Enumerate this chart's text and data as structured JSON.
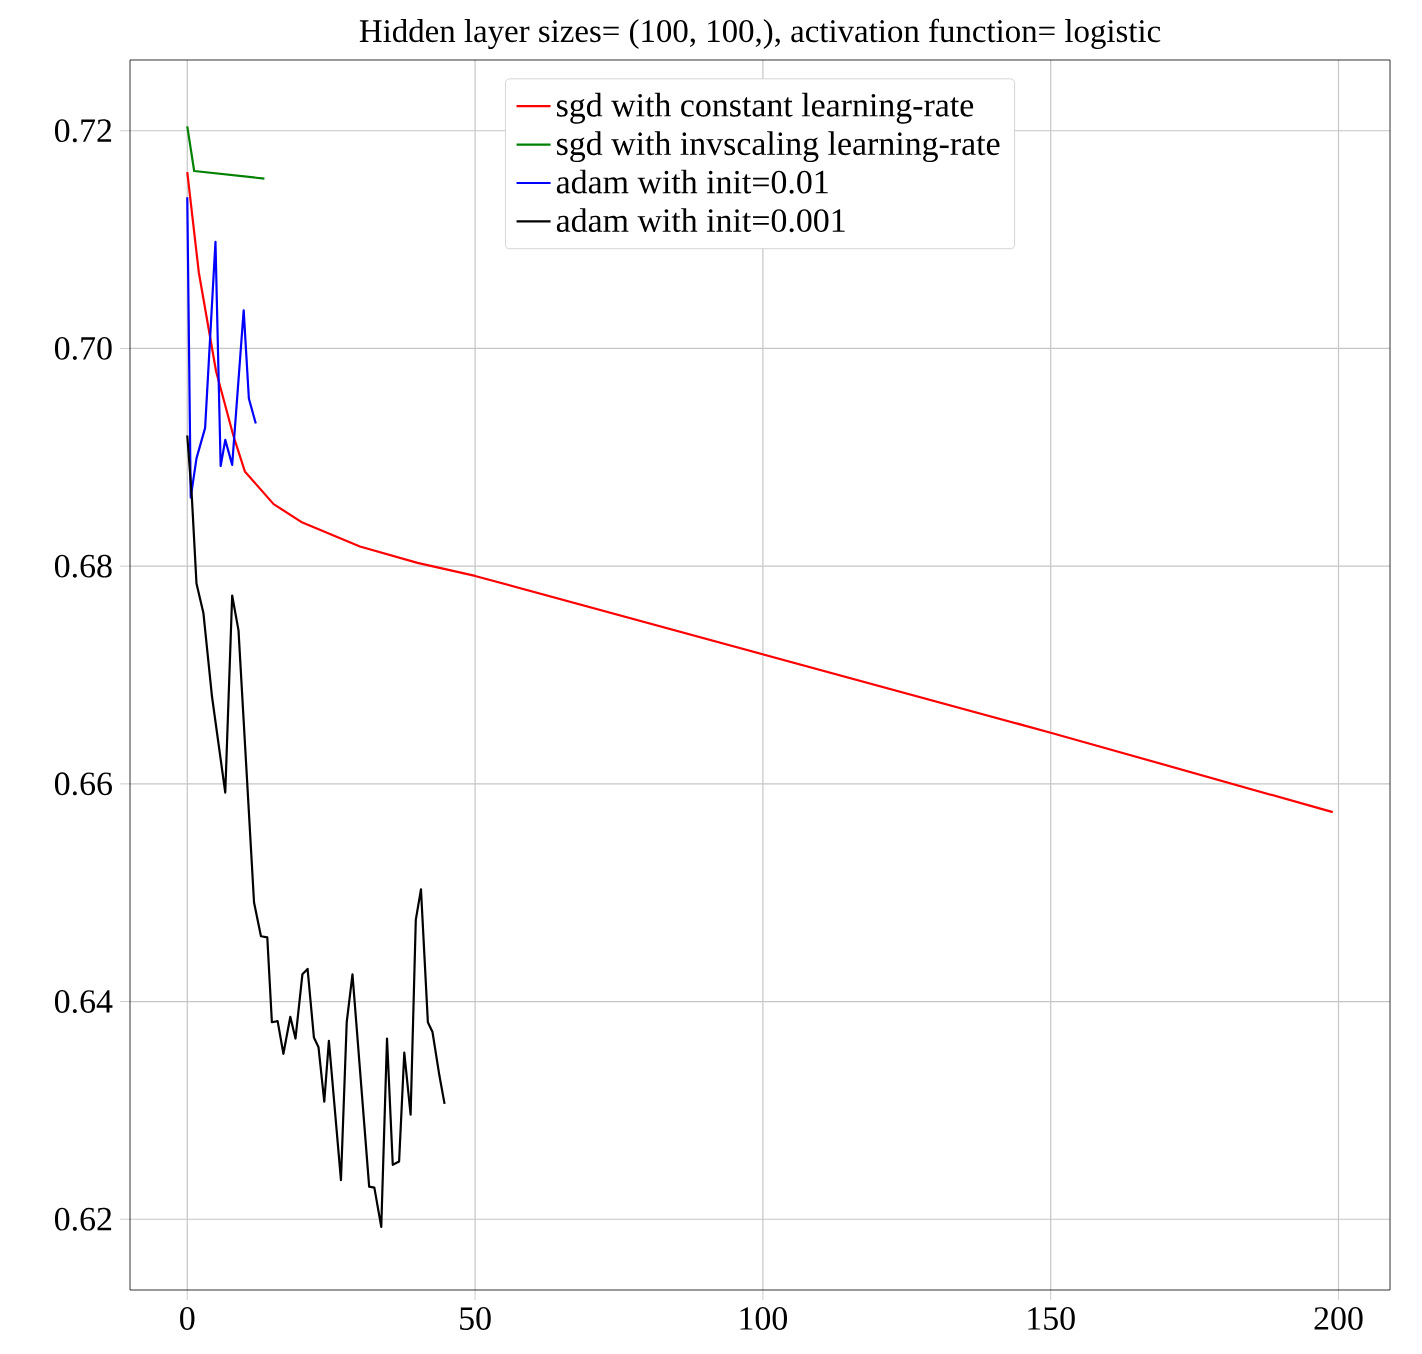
{
  "chart_data": {
    "type": "line",
    "title": "Hidden layer sizes= (100, 100,), activation function= logistic",
    "xlim": [
      -9.95,
      208.95
    ],
    "ylim": [
      0.6135,
      0.7265
    ],
    "xticks": [
      0,
      50,
      100,
      150,
      200
    ],
    "yticks": [
      0.62,
      0.64,
      0.66,
      0.68,
      {
        "value": 0.7,
        "label": "0.70"
      },
      0.72
    ],
    "grid": true,
    "legend": "top",
    "series": [
      {
        "name": "sgd with constant learning-rate",
        "color": "#ff0000",
        "x": [
          0,
          2,
          5,
          8,
          10,
          15,
          20,
          30,
          40,
          50,
          100,
          150,
          199
        ],
        "values": [
          0.7162,
          0.707,
          0.6979,
          0.692,
          0.6887,
          0.6857,
          0.684,
          0.6818,
          0.6803,
          0.6791,
          0.6719,
          0.6647,
          0.6574
        ]
      },
      {
        "name": "sgd with invscaling learning-rate",
        "color": "#008000",
        "x": [
          0,
          1.2,
          13.4
        ],
        "values": [
          0.7204,
          0.7163,
          0.7156
        ]
      },
      {
        "name": "adam with init=0.01",
        "color": "#0000ff",
        "x": [
          0,
          0.6,
          1.6,
          3.1,
          4.9,
          5.8,
          6.6,
          7.8,
          9.8,
          10.7,
          11.9
        ],
        "values": [
          0.7139,
          0.6863,
          0.6899,
          0.6927,
          0.7098,
          0.6892,
          0.6916,
          0.6893,
          0.7035,
          0.6954,
          0.6931
        ]
      },
      {
        "name": "adam with init=0.001",
        "color": "#000000",
        "x": [
          0,
          0.8,
          1.6,
          2.8,
          4.3,
          6.6,
          7.8,
          8.9,
          11.6,
          12.8,
          13.9,
          14.7,
          15.7,
          16.7,
          17.9,
          18.8,
          20.0,
          20.9,
          22.0,
          22.8,
          23.8,
          24.6,
          26.7,
          27.7,
          28.7,
          31.6,
          32.5,
          33.7,
          34.7,
          35.7,
          36.8,
          37.7,
          38.8,
          39.7,
          40.6,
          41.8,
          42.6,
          43.8,
          44.7
        ],
        "values": [
          0.692,
          0.6863,
          0.6784,
          0.6757,
          0.668,
          0.6592,
          0.6773,
          0.6741,
          0.6491,
          0.646,
          0.6459,
          0.6381,
          0.6382,
          0.6352,
          0.6386,
          0.6366,
          0.6425,
          0.643,
          0.6367,
          0.6358,
          0.6308,
          0.6364,
          0.6236,
          0.6381,
          0.6425,
          0.623,
          0.6229,
          0.6193,
          0.6366,
          0.625,
          0.6253,
          0.6353,
          0.6296,
          0.6475,
          0.6503,
          0.6381,
          0.6372,
          0.6332,
          0.6306
        ]
      }
    ]
  }
}
